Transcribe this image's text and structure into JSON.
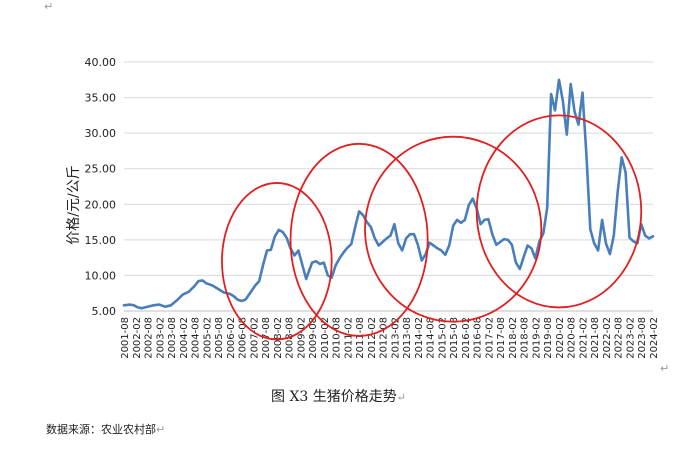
{
  "page": {
    "caption": "图 X3  生猪价格走势",
    "source": "数据来源：农业农村部",
    "return_mark": "↵"
  },
  "chart_data": {
    "type": "line",
    "title": "",
    "xlabel": "",
    "ylabel": "价格/元/公斤",
    "ylim": [
      5,
      40
    ],
    "y_ticks": [
      "5.00",
      "10.00",
      "15.00",
      "20.00",
      "25.00",
      "30.00",
      "35.00",
      "40.00"
    ],
    "grid": true,
    "line_color": "#4a7ebb",
    "highlight_color": "#e02020",
    "x_ticks": [
      "2001-08",
      "2002-02",
      "2002-08",
      "2003-02",
      "2003-08",
      "2004-02",
      "2004-08",
      "2005-02",
      "2005-08",
      "2006-02",
      "2006-08",
      "2007-02",
      "2007-08",
      "2008-02",
      "2008-08",
      "2009-02",
      "2009-08",
      "2010-02",
      "2010-08",
      "2011-02",
      "2011-08",
      "2012-02",
      "2012-08",
      "2013-02",
      "2013-08",
      "2014-02",
      "2014-08",
      "2015-02",
      "2015-08",
      "2016-02",
      "2016-08",
      "2017-02",
      "2017-08",
      "2018-02",
      "2018-08",
      "2019-02",
      "2019-08",
      "2020-02",
      "2020-08",
      "2021-02",
      "2021-08",
      "2022-02",
      "2022-08",
      "2023-02",
      "2023-08",
      "2024-02"
    ],
    "series": [
      {
        "values": [
          [
            "2001-08",
            5.8
          ],
          [
            "2001-11",
            5.9
          ],
          [
            "2002-01",
            5.8
          ],
          [
            "2002-03",
            5.5
          ],
          [
            "2002-05",
            5.4
          ],
          [
            "2002-08",
            5.6
          ],
          [
            "2002-11",
            5.8
          ],
          [
            "2003-02",
            5.9
          ],
          [
            "2003-05",
            5.6
          ],
          [
            "2003-08",
            5.8
          ],
          [
            "2003-11",
            6.5
          ],
          [
            "2004-02",
            7.3
          ],
          [
            "2004-05",
            7.7
          ],
          [
            "2004-08",
            8.5
          ],
          [
            "2004-10",
            9.2
          ],
          [
            "2004-12",
            9.3
          ],
          [
            "2005-02",
            8.9
          ],
          [
            "2005-05",
            8.6
          ],
          [
            "2005-08",
            8.1
          ],
          [
            "2005-11",
            7.6
          ],
          [
            "2006-02",
            7.4
          ],
          [
            "2006-04",
            7.1
          ],
          [
            "2006-06",
            6.6
          ],
          [
            "2006-08",
            6.4
          ],
          [
            "2006-10",
            6.6
          ],
          [
            "2007-01",
            7.8
          ],
          [
            "2007-03",
            8.6
          ],
          [
            "2007-05",
            9.2
          ],
          [
            "2007-07",
            11.5
          ],
          [
            "2007-09",
            13.5
          ],
          [
            "2007-11",
            13.6
          ],
          [
            "2008-01",
            15.5
          ],
          [
            "2008-03",
            16.4
          ],
          [
            "2008-05",
            16.1
          ],
          [
            "2008-07",
            15.3
          ],
          [
            "2008-09",
            13.8
          ],
          [
            "2008-11",
            12.8
          ],
          [
            "2009-01",
            13.5
          ],
          [
            "2009-03",
            11.5
          ],
          [
            "2009-05",
            9.5
          ],
          [
            "2009-06",
            10.3
          ],
          [
            "2009-08",
            11.8
          ],
          [
            "2009-10",
            12.0
          ],
          [
            "2009-12",
            11.6
          ],
          [
            "2010-02",
            11.8
          ],
          [
            "2010-04",
            10.0
          ],
          [
            "2010-06",
            9.7
          ],
          [
            "2010-08",
            11.4
          ],
          [
            "2010-10",
            12.4
          ],
          [
            "2010-12",
            13.2
          ],
          [
            "2011-02",
            13.9
          ],
          [
            "2011-04",
            14.4
          ],
          [
            "2011-06",
            16.8
          ],
          [
            "2011-08",
            19.0
          ],
          [
            "2011-10",
            18.5
          ],
          [
            "2011-12",
            17.5
          ],
          [
            "2012-02",
            16.8
          ],
          [
            "2012-04",
            15.2
          ],
          [
            "2012-06",
            14.2
          ],
          [
            "2012-08",
            14.7
          ],
          [
            "2012-10",
            15.2
          ],
          [
            "2012-12",
            15.6
          ],
          [
            "2013-02",
            17.2
          ],
          [
            "2013-04",
            14.5
          ],
          [
            "2013-06",
            13.5
          ],
          [
            "2013-08",
            15.2
          ],
          [
            "2013-10",
            15.8
          ],
          [
            "2013-12",
            15.8
          ],
          [
            "2014-02",
            14.3
          ],
          [
            "2014-04",
            12.1
          ],
          [
            "2014-06",
            13.0
          ],
          [
            "2014-08",
            14.6
          ],
          [
            "2014-10",
            14.2
          ],
          [
            "2014-12",
            13.8
          ],
          [
            "2015-02",
            13.5
          ],
          [
            "2015-04",
            12.9
          ],
          [
            "2015-06",
            14.2
          ],
          [
            "2015-08",
            17.0
          ],
          [
            "2015-10",
            17.8
          ],
          [
            "2015-12",
            17.4
          ],
          [
            "2016-02",
            17.8
          ],
          [
            "2016-04",
            19.9
          ],
          [
            "2016-06",
            20.8
          ],
          [
            "2016-08",
            19.4
          ],
          [
            "2016-10",
            17.2
          ],
          [
            "2016-12",
            17.8
          ],
          [
            "2017-02",
            17.9
          ],
          [
            "2017-04",
            15.8
          ],
          [
            "2017-06",
            14.3
          ],
          [
            "2017-08",
            14.7
          ],
          [
            "2017-10",
            15.1
          ],
          [
            "2017-12",
            15.0
          ],
          [
            "2018-02",
            14.3
          ],
          [
            "2018-04",
            11.8
          ],
          [
            "2018-06",
            10.9
          ],
          [
            "2018-08",
            12.6
          ],
          [
            "2018-10",
            14.2
          ],
          [
            "2018-12",
            13.8
          ],
          [
            "2019-02",
            12.4
          ],
          [
            "2019-04",
            14.8
          ],
          [
            "2019-06",
            15.9
          ],
          [
            "2019-08",
            19.5
          ],
          [
            "2019-10",
            35.5
          ],
          [
            "2019-12",
            33.2
          ],
          [
            "2020-02",
            37.5
          ],
          [
            "2020-04",
            34.5
          ],
          [
            "2020-06",
            29.8
          ],
          [
            "2020-08",
            36.9
          ],
          [
            "2020-10",
            33.0
          ],
          [
            "2020-12",
            31.2
          ],
          [
            "2021-02",
            35.7
          ],
          [
            "2021-04",
            27.0
          ],
          [
            "2021-06",
            16.5
          ],
          [
            "2021-08",
            14.5
          ],
          [
            "2021-10",
            13.5
          ],
          [
            "2021-12",
            17.8
          ],
          [
            "2022-02",
            14.5
          ],
          [
            "2022-04",
            13.0
          ],
          [
            "2022-06",
            15.6
          ],
          [
            "2022-08",
            21.8
          ],
          [
            "2022-10",
            26.6
          ],
          [
            "2022-12",
            24.5
          ],
          [
            "2023-02",
            15.3
          ],
          [
            "2023-04",
            14.8
          ],
          [
            "2023-06",
            14.5
          ],
          [
            "2023-08",
            17.2
          ],
          [
            "2023-10",
            15.6
          ],
          [
            "2023-12",
            15.2
          ],
          [
            "2024-02",
            15.5
          ]
        ]
      }
    ],
    "highlights": [
      {
        "center_x": "2008-02",
        "center_y": 12.0,
        "span_months": 28,
        "span_y": 11.0
      },
      {
        "center_x": "2011-08",
        "center_y": 15.0,
        "span_months": 35,
        "span_y": 13.5
      },
      {
        "center_x": "2015-08",
        "center_y": 16.5,
        "span_months": 45,
        "span_y": 13.0
      },
      {
        "center_x": "2020-02",
        "center_y": 19.0,
        "span_months": 42,
        "span_y": 13.5
      }
    ]
  }
}
